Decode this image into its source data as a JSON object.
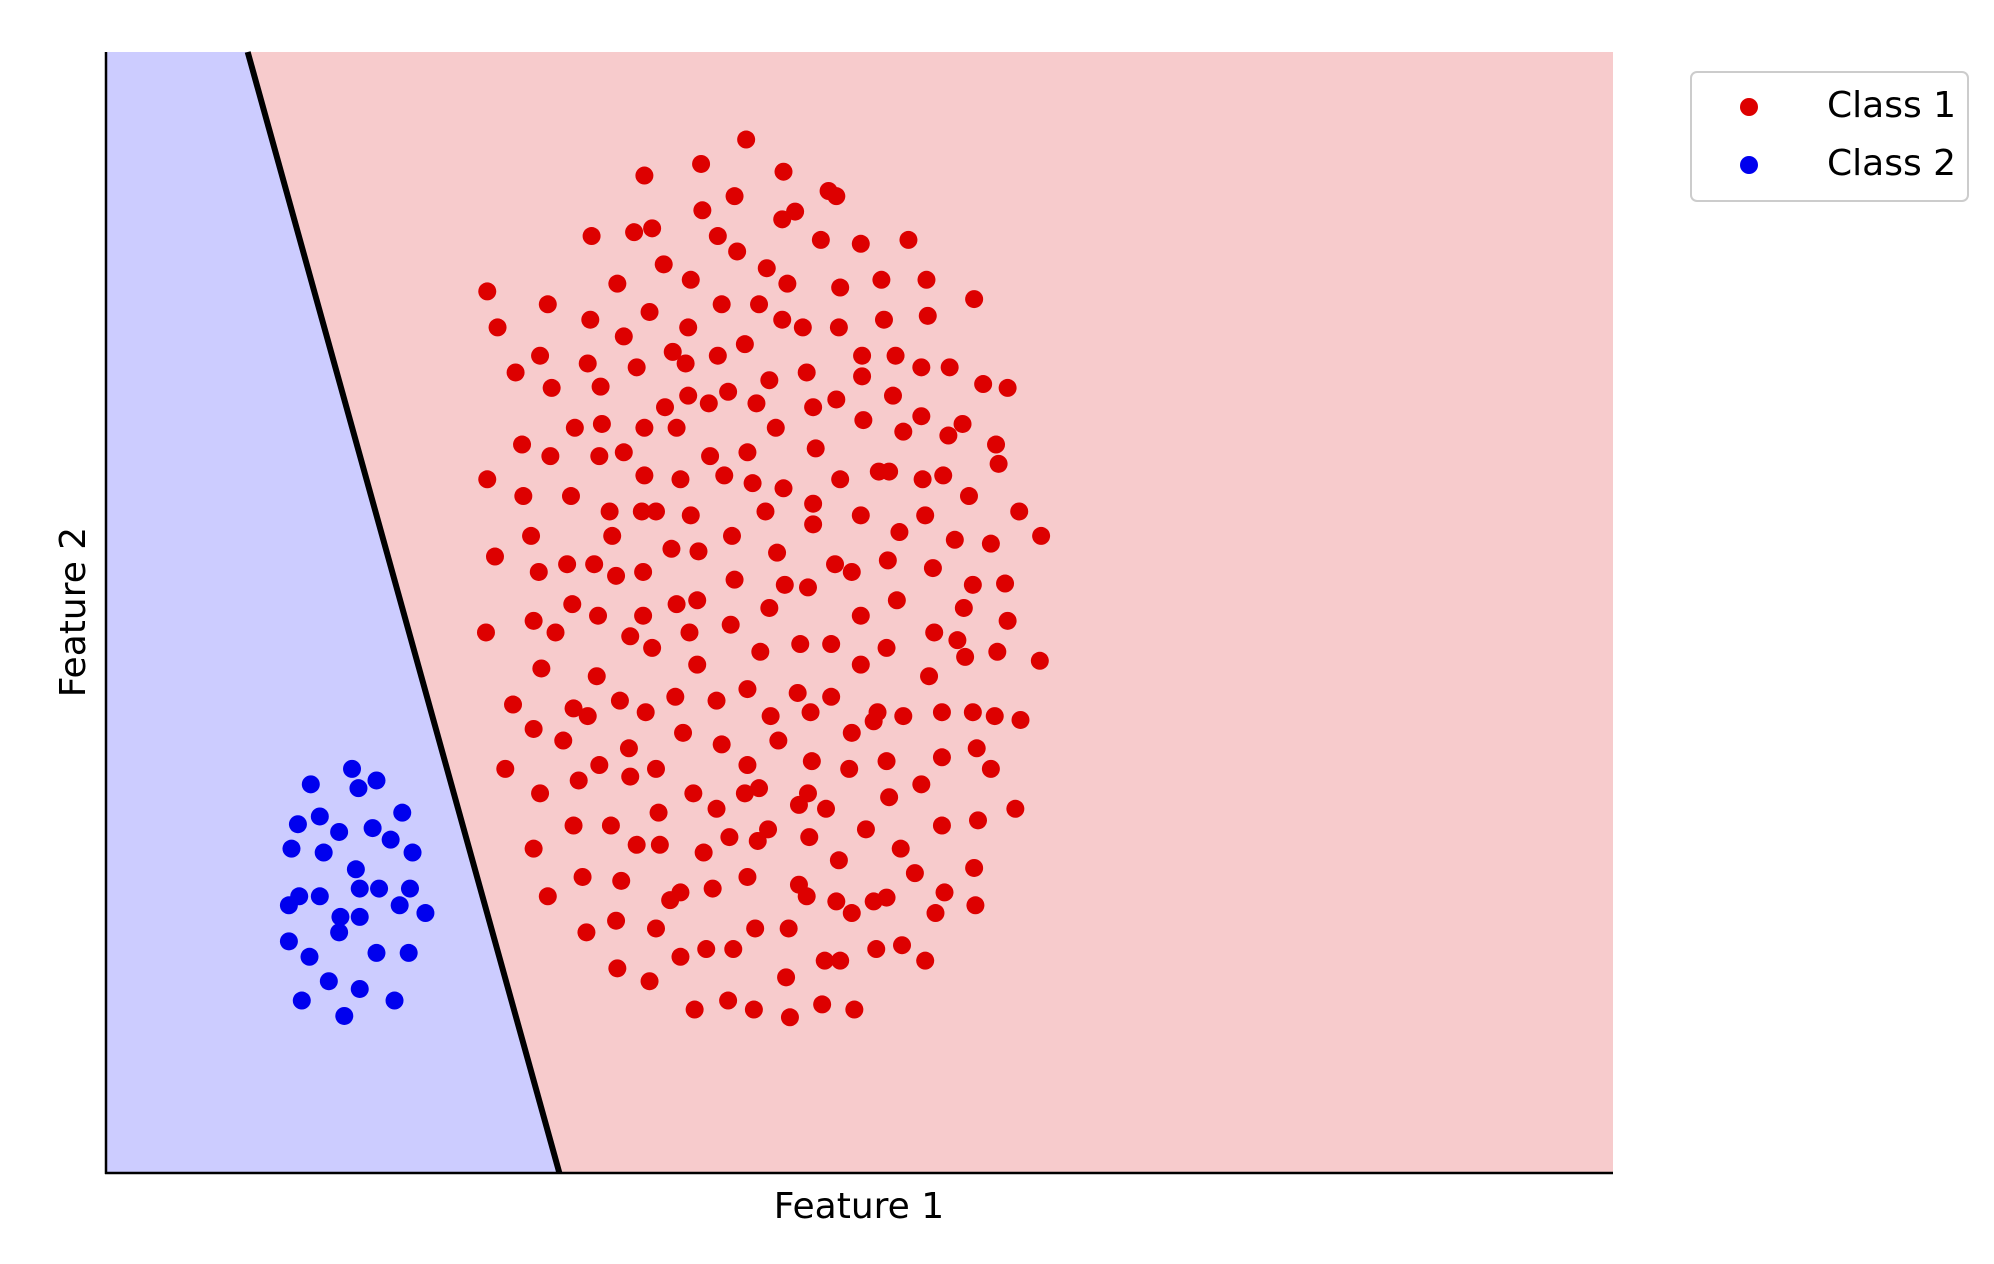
{
  "chart_data": {
    "type": "scatter",
    "x_label": "Feature 1",
    "y_label": "Feature 2",
    "xlim": [
      0,
      1170
    ],
    "ylim": [
      0,
      871
    ],
    "regions": [
      {
        "color": "#ccccff"
      },
      {
        "color": "#f7cbcc"
      }
    ],
    "decision_boundary": {
      "x": [
        110,
        352
      ],
      "y": [
        871,
        0
      ],
      "color": "#000000"
    },
    "legend": "upper right outside",
    "series": [
      {
        "name": "Class 1",
        "color": "#dd0000",
        "x": [
          497,
          418,
          462,
          526,
          488,
          463,
          535,
          525,
          561,
          567,
          377,
          410,
          424,
          475,
          490,
          555,
          586,
          623,
          433,
          454,
          513,
          529,
          570,
          602,
          637,
          674,
          296,
          343,
          397,
          376,
          422,
          478,
          507,
          525,
          541,
          569,
          604,
          638,
          304,
          337,
          318,
          346,
          374,
          384,
          402,
          412,
          440,
          450,
          452,
          475,
          496,
          515,
          544,
          587,
          587,
          613,
          633,
          655,
          681,
          700,
          364,
          385,
          418,
          434,
          443,
          452,
          468,
          483,
          505,
          520,
          549,
          567,
          588,
          611,
          633,
          665,
          654,
          691,
          323,
          345,
          383,
          402,
          469,
          498,
          551,
          619,
          296,
          324,
          361,
          418,
          446,
          480,
          502,
          526,
          570,
          600,
          608,
          634,
          650,
          693,
          670,
          330,
          391,
          416,
          393,
          427,
          454,
          486,
          512,
          549,
          549,
          586,
          616,
          636,
          659,
          687,
          709,
          726,
          302,
          336,
          358,
          379,
          396,
          417,
          439,
          460,
          488,
          521,
          527,
          545,
          566,
          579,
          607,
          642,
          673,
          698,
          295,
          332,
          349,
          362,
          382,
          407,
          417,
          424,
          443,
          459,
          453,
          485,
          508,
          515,
          539,
          563,
          586,
          586,
          614,
          606,
          643,
          666,
          661,
          667,
          692,
          700,
          725,
          338,
          381,
          459,
          316,
          332,
          355,
          363,
          374,
          399,
          419,
          442,
          474,
          498,
          516,
          537,
          547,
          563,
          579,
          599,
          596,
          619,
          639,
          649,
          673,
          690,
          710,
          310,
          337,
          367,
          383,
          406,
          407,
          427,
          448,
          456,
          478,
          498,
          522,
          496,
          507,
          548,
          538,
          545,
          559,
          577,
          606,
          608,
          633,
          649,
          676,
          687,
          332,
          363,
          392,
          412,
          429,
          430,
          474,
          464,
          484,
          506,
          514,
          546,
          569,
          590,
          617,
          649,
          677,
          706,
          343,
          370,
          400,
          438,
          446,
          471,
          498,
          538,
          544,
          567,
          596,
          606,
          628,
          651,
          674,
          675,
          644,
          373,
          396,
          427,
          504,
          530,
          579,
          397,
          422,
          446,
          466,
          487,
          528,
          558,
          570,
          598,
          618,
          636,
          457,
          483,
          503,
          531,
          556,
          581
        ],
        "y": [
          803,
          775,
          784,
          778,
          759,
          748,
          747,
          741,
          763,
          759,
          728,
          731,
          734,
          728,
          716,
          725,
          722,
          725,
          706,
          694,
          703,
          691,
          688,
          694,
          694,
          679,
          685,
          675,
          691,
          663,
          669,
          675,
          675,
          663,
          657,
          657,
          663,
          666,
          657,
          635,
          622,
          610,
          629,
          611,
          650,
          626,
          638,
          629,
          657,
          635,
          644,
          616,
          622,
          635,
          619,
          635,
          626,
          626,
          613,
          610,
          579,
          582,
          579,
          595,
          579,
          604,
          598,
          607,
          598,
          579,
          595,
          601,
          585,
          604,
          588,
          582,
          573,
          566,
          566,
          557,
          557,
          560,
          557,
          560,
          563,
          576,
          539,
          526,
          526,
          542,
          539,
          542,
          536,
          532,
          539,
          545,
          545,
          539,
          542,
          551,
          526,
          495,
          514,
          514,
          495,
          514,
          511,
          495,
          514,
          504,
          520,
          511,
          498,
          511,
          492,
          489,
          514,
          495,
          479,
          467,
          473,
          473,
          464,
          467,
          485,
          483,
          461,
          482,
          457,
          455,
          473,
          467,
          476,
          470,
          457,
          458,
          420,
          429,
          420,
          442,
          433,
          417,
          433,
          408,
          442,
          445,
          420,
          426,
          405,
          439,
          411,
          411,
          433,
          395,
          445,
          408,
          420,
          439,
          414,
          401,
          405,
          429,
          398,
          392,
          386,
          395,
          364,
          345,
          336,
          361,
          355,
          367,
          358,
          370,
          367,
          376,
          355,
          373,
          358,
          370,
          342,
          358,
          351,
          355,
          386,
          358,
          358,
          355,
          352,
          314,
          295,
          305,
          317,
          330,
          308,
          314,
          342,
          295,
          333,
          317,
          336,
          295,
          299,
          320,
          286,
          295,
          283,
          314,
          320,
          292,
          302,
          323,
          330,
          314,
          252,
          270,
          270,
          255,
          280,
          255,
          283,
          249,
          261,
          258,
          267,
          261,
          243,
          267,
          252,
          270,
          274,
          283,
          215,
          230,
          227,
          212,
          218,
          221,
          230,
          224,
          215,
          211,
          211,
          214,
          233,
          218,
          237,
          208,
          202,
          187,
          196,
          190,
          190,
          190,
          202,
          159,
          149,
          168,
          174,
          174,
          152,
          165,
          165,
          174,
          177,
          165,
          127,
          134,
          127,
          121,
          131,
          127
        ]
      },
      {
        "name": "Class 2",
        "color": "#0000ee",
        "x": [
          159,
          191,
          210,
          196,
          166,
          149,
          230,
          181,
          207,
          221,
          144,
          169,
          238,
          194,
          150,
          166,
          142,
          197,
          212,
          236,
          228,
          248,
          182,
          197,
          181,
          142,
          158,
          210,
          235,
          173,
          197,
          152,
          224,
          185
        ],
        "y": [
          302,
          314,
          305,
          299,
          277,
          271,
          280,
          265,
          268,
          259,
          252,
          249,
          249,
          236,
          215,
          215,
          208,
          221,
          221,
          221,
          208,
          202,
          199,
          199,
          187,
          180,
          168,
          171,
          171,
          149,
          143,
          134,
          134,
          122
        ]
      }
    ]
  }
}
